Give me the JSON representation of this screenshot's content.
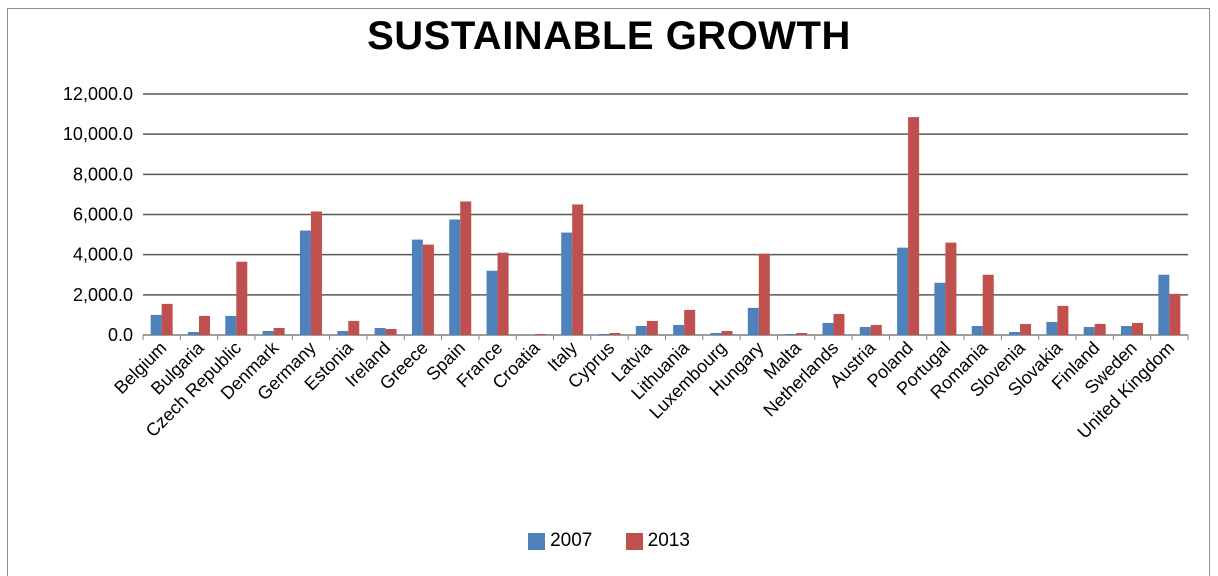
{
  "chart_data": {
    "type": "bar",
    "title": "SUSTAINABLE GROWTH",
    "xlabel": "",
    "ylabel": "",
    "ylim": [
      0,
      12000
    ],
    "yticks": [
      "0.0",
      "2,000.0",
      "4,000.0",
      "6,000.0",
      "8,000.0",
      "10,000.0",
      "12,000.0"
    ],
    "grid": true,
    "legend_position": "bottom",
    "categories": [
      "Belgium",
      "Bulgaria",
      "Czech Republic",
      "Denmark",
      "Germany",
      "Estonia",
      "Ireland",
      "Greece",
      "Spain",
      "France",
      "Croatia",
      "Italy",
      "Cyprus",
      "Latvia",
      "Lithuania",
      "Luxembourg",
      "Hungary",
      "Malta",
      "Netherlands",
      "Austria",
      "Poland",
      "Portugal",
      "Romania",
      "Slovenia",
      "Slovakia",
      "Finland",
      "Sweden",
      "United Kingdom"
    ],
    "series": [
      {
        "name": "2007",
        "color": "#4f81bd",
        "values": [
          1000,
          150,
          950,
          200,
          5200,
          200,
          350,
          4750,
          5750,
          3200,
          0,
          5100,
          50,
          450,
          500,
          100,
          1350,
          50,
          600,
          400,
          4350,
          2600,
          450,
          150,
          650,
          400,
          450,
          3000
        ]
      },
      {
        "name": "2013",
        "color": "#c0504d",
        "values": [
          1550,
          950,
          3650,
          350,
          6150,
          700,
          300,
          4500,
          6650,
          4100,
          50,
          6500,
          100,
          700,
          1250,
          200,
          4050,
          100,
          1050,
          500,
          10850,
          4600,
          3000,
          550,
          1450,
          550,
          600,
          2050
        ]
      }
    ]
  }
}
